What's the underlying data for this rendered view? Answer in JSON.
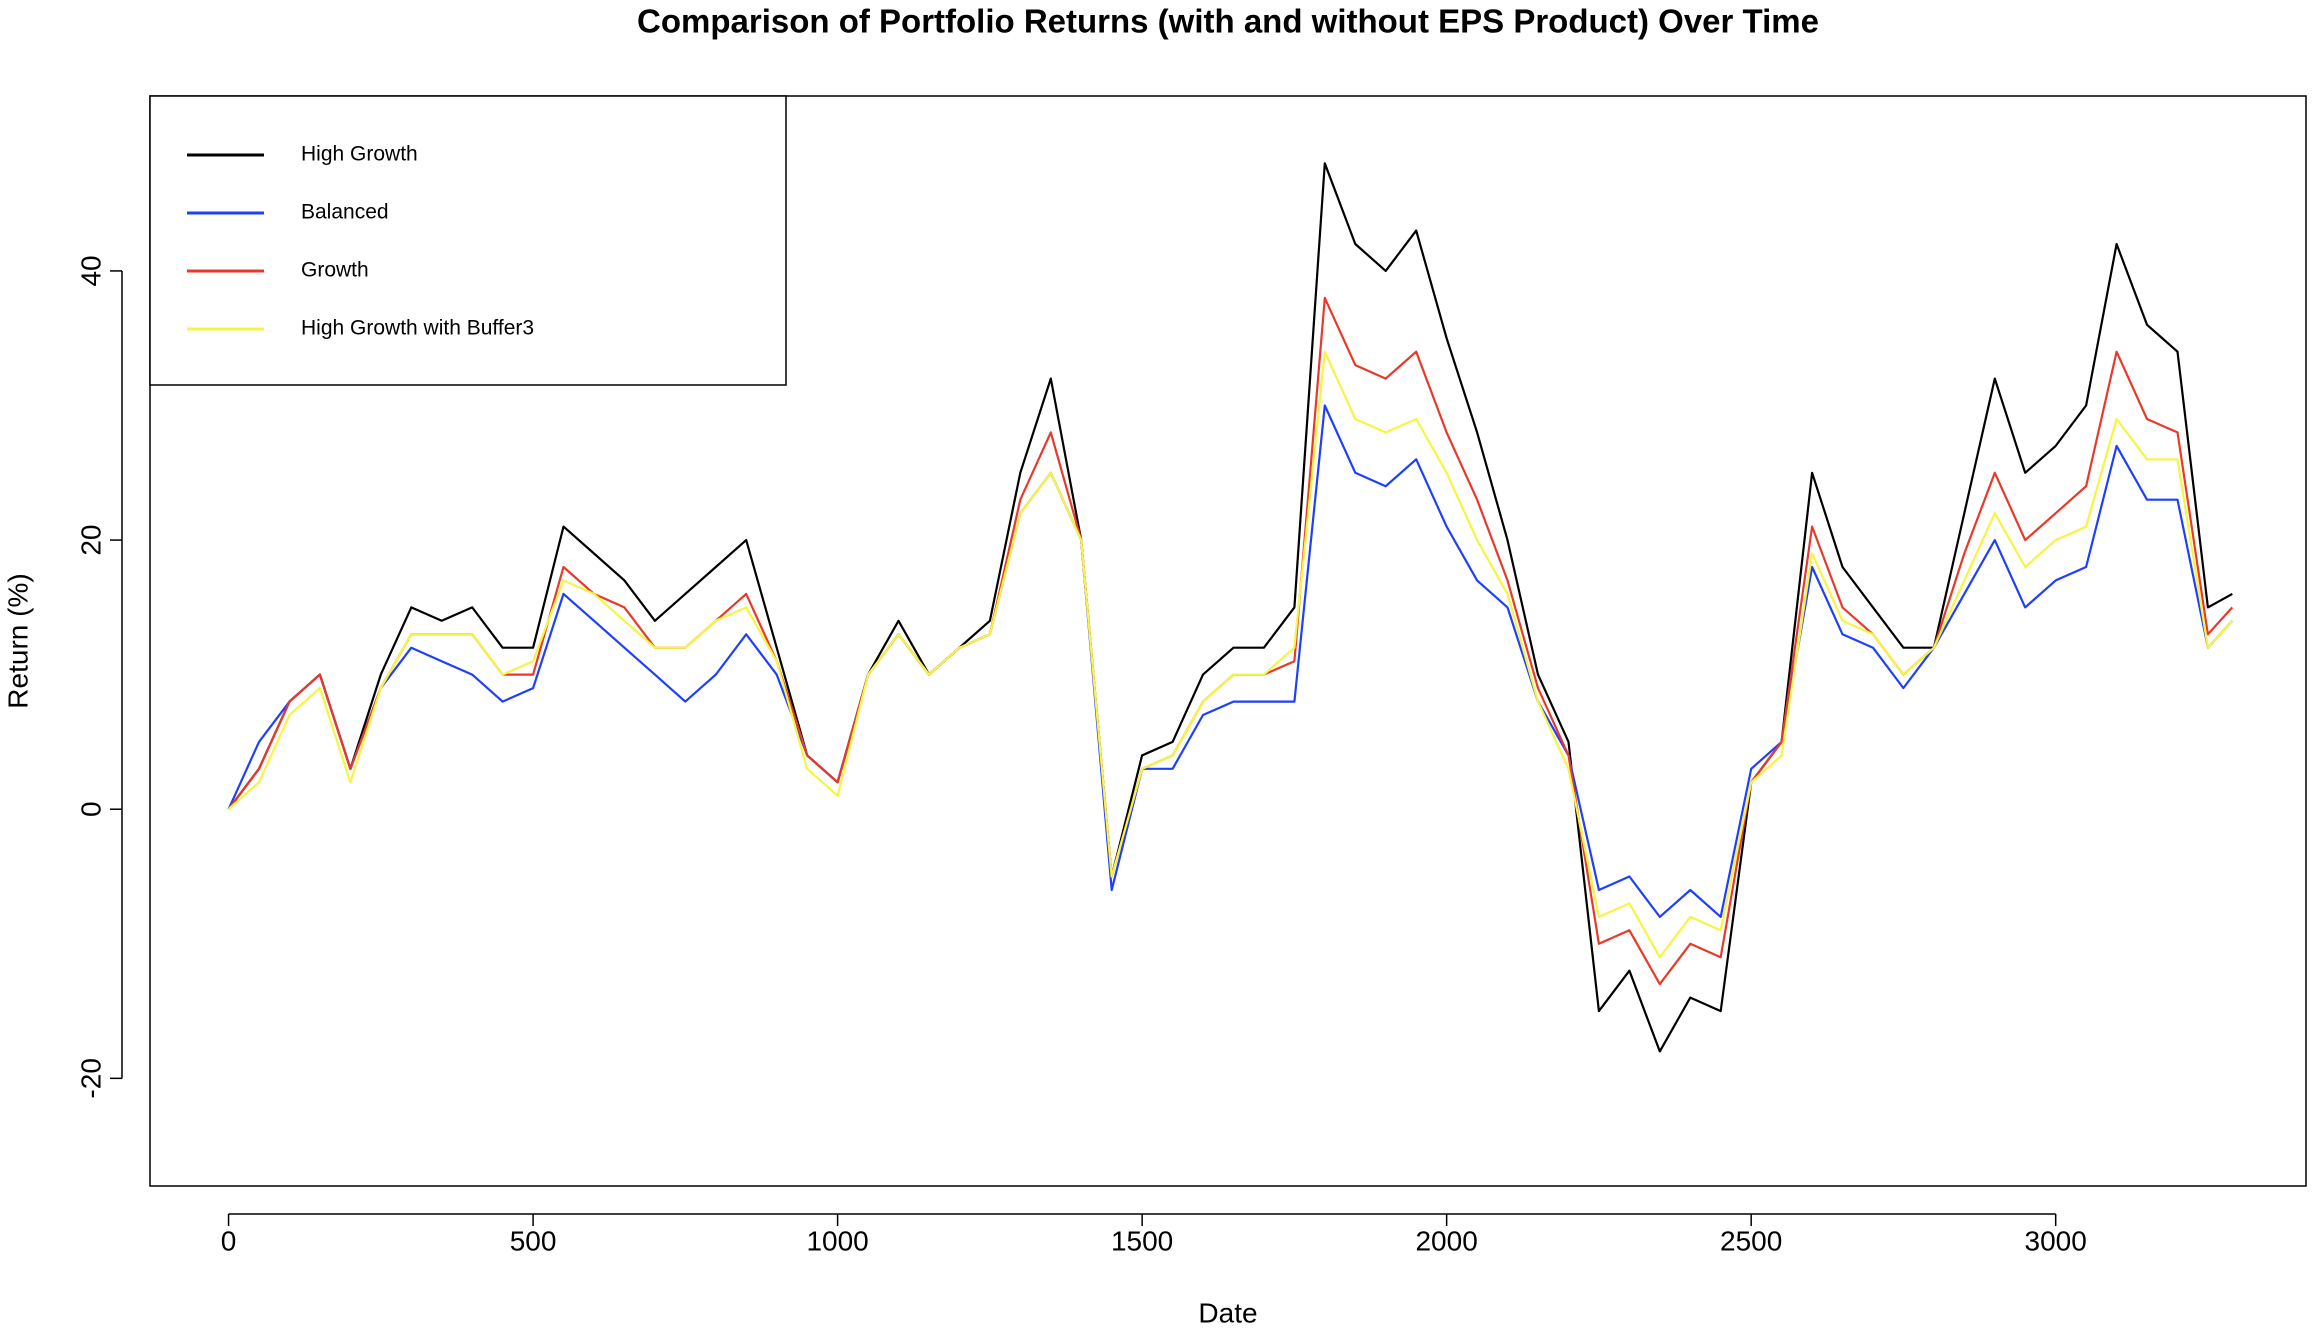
{
  "chart_data": {
    "type": "line",
    "title": "Comparison of Portfolio Returns (with and without EPS Product) Over Time",
    "xlabel": "Date",
    "ylabel": "Return (%)",
    "x": [
      0,
      50,
      100,
      150,
      200,
      250,
      300,
      350,
      400,
      450,
      500,
      550,
      600,
      650,
      700,
      750,
      800,
      850,
      900,
      950,
      1000,
      1050,
      1100,
      1150,
      1200,
      1250,
      1300,
      1350,
      1400,
      1450,
      1500,
      1550,
      1600,
      1650,
      1700,
      1750,
      1800,
      1850,
      1900,
      1950,
      2000,
      2050,
      2100,
      2150,
      2200,
      2250,
      2300,
      2350,
      2400,
      2450,
      2500,
      2550,
      2600,
      2650,
      2700,
      2750,
      2800,
      2850,
      2900,
      2950,
      3000,
      3050,
      3100,
      3150,
      3200,
      3250,
      3290
    ],
    "series": [
      {
        "name": "High Growth",
        "color": "#000000",
        "values": [
          0,
          3,
          8,
          10,
          3,
          10,
          15,
          14,
          15,
          12,
          12,
          21,
          19,
          17,
          14,
          16,
          18,
          20,
          12,
          4,
          2,
          10,
          14,
          10,
          12,
          14,
          25,
          32,
          20,
          -5,
          4,
          5,
          10,
          12,
          12,
          15,
          48,
          42,
          40,
          43,
          35,
          28,
          20,
          10,
          5,
          -15,
          -12,
          -18,
          -14,
          -15,
          2,
          5,
          25,
          18,
          15,
          12,
          12,
          22,
          32,
          25,
          27,
          30,
          42,
          36,
          34,
          15,
          16
        ]
      },
      {
        "name": "Balanced",
        "color": "#1f3fff",
        "values": [
          0,
          5,
          8,
          10,
          3,
          9,
          12,
          11,
          10,
          8,
          9,
          16,
          14,
          12,
          10,
          8,
          10,
          13,
          10,
          4,
          2,
          10,
          13,
          10,
          12,
          13,
          22,
          25,
          20,
          -6,
          3,
          3,
          7,
          8,
          8,
          8,
          30,
          25,
          24,
          26,
          21,
          17,
          15,
          8,
          4,
          -6,
          -5,
          -8,
          -6,
          -8,
          3,
          5,
          18,
          13,
          12,
          9,
          12,
          16,
          20,
          15,
          17,
          18,
          27,
          23,
          23,
          12,
          14
        ]
      },
      {
        "name": "Growth",
        "color": "#e8392a",
        "values": [
          0,
          3,
          8,
          10,
          3,
          9,
          13,
          13,
          13,
          10,
          10,
          18,
          16,
          15,
          12,
          12,
          14,
          16,
          11,
          4,
          2,
          10,
          13,
          10,
          12,
          13,
          23,
          28,
          20,
          -5,
          3,
          4,
          8,
          10,
          10,
          11,
          38,
          33,
          32,
          34,
          28,
          23,
          17,
          9,
          4,
          -10,
          -9,
          -13,
          -10,
          -11,
          2,
          5,
          21,
          15,
          13,
          10,
          12,
          19,
          25,
          20,
          22,
          24,
          34,
          29,
          28,
          13,
          15
        ]
      },
      {
        "name": "High Growth with Buffer3",
        "color": "#f5f542",
        "values": [
          0,
          2,
          7,
          9,
          2,
          9,
          13,
          13,
          13,
          10,
          11,
          17,
          16,
          14,
          12,
          12,
          14,
          15,
          11,
          3,
          1,
          10,
          13,
          10,
          12,
          13,
          22,
          25,
          20,
          -5,
          3,
          4,
          8,
          10,
          10,
          12,
          34,
          29,
          28,
          29,
          25,
          20,
          16,
          8,
          3,
          -8,
          -7,
          -11,
          -8,
          -9,
          2,
          4,
          19,
          14,
          13,
          10,
          12,
          17,
          22,
          18,
          20,
          21,
          29,
          26,
          26,
          12,
          14
        ]
      }
    ],
    "xlim": [
      -129,
      3411
    ],
    "ylim": [
      -28,
      53
    ],
    "xticks": [
      0,
      500,
      1000,
      1500,
      2000,
      2500,
      3000
    ],
    "yticks": [
      -20,
      0,
      20,
      40
    ],
    "legend": "top-left"
  }
}
